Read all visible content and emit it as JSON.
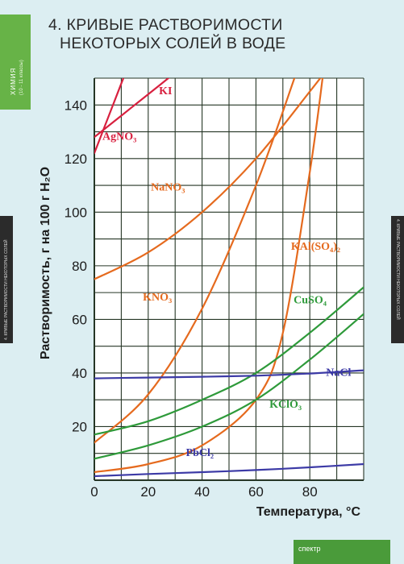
{
  "header": {
    "title_line1": "4. КРИВЫЕ РАСТВОРИМОСТИ",
    "title_line2": "НЕКОТОРЫХ СОЛЕЙ В ВОДЕ"
  },
  "side_tab": {
    "label": "ХИМИЯ",
    "sublabel": "(10 - 11 классы)"
  },
  "side_strip_text": "4. КРИВЫЕ РАСТВОРИМОСТИ НЕКОТОРЫХ СОЛЕЙ",
  "colors": {
    "grid": "#263626",
    "chart_bg": "#ffffff",
    "tab_green": "#67b347",
    "strip_dark": "#2b2b2b",
    "red": "#d8203f",
    "orange": "#e56a1e",
    "green": "#2e9a3a",
    "blue": "#3c3aa6"
  },
  "chart_data": {
    "type": "line",
    "xlabel": "Температура, °C",
    "ylabel": "Растворимость, г на 100 г H₂O",
    "xlim": [
      0,
      100
    ],
    "ylim": [
      0,
      150
    ],
    "xticks": [
      0,
      20,
      40,
      60,
      80
    ],
    "yticks": [
      20,
      40,
      60,
      80,
      100,
      120,
      140
    ],
    "grid": true,
    "series": [
      {
        "name": "KI",
        "color": "#d8203f",
        "x": [
          0,
          10,
          20,
          30
        ],
        "y": [
          128,
          136,
          144,
          152
        ]
      },
      {
        "name": "AgNO3",
        "color": "#d8203f",
        "x": [
          0,
          5,
          10,
          12
        ],
        "y": [
          122,
          135,
          148,
          153
        ]
      },
      {
        "name": "NaNO3",
        "color": "#e56a1e",
        "x": [
          0,
          20,
          40,
          60,
          80,
          90
        ],
        "y": [
          75,
          85,
          100,
          120,
          145,
          158
        ]
      },
      {
        "name": "KNO3",
        "color": "#e56a1e",
        "x": [
          0,
          20,
          40,
          60,
          75
        ],
        "y": [
          14,
          32,
          64,
          110,
          152
        ]
      },
      {
        "name": "KAl(SO4)2",
        "color": "#e56a1e",
        "x": [
          0,
          20,
          40,
          60,
          70,
          80,
          85
        ],
        "y": [
          3,
          6,
          13,
          30,
          55,
          115,
          152
        ]
      },
      {
        "name": "CuSO4",
        "color": "#2e9a3a",
        "x": [
          0,
          20,
          40,
          60,
          80,
          100
        ],
        "y": [
          17,
          22,
          30,
          40,
          55,
          72
        ]
      },
      {
        "name": "KClO3",
        "color": "#2e9a3a",
        "x": [
          0,
          20,
          40,
          60,
          80,
          100
        ],
        "y": [
          8,
          13,
          20,
          30,
          45,
          62
        ]
      },
      {
        "name": "NaCl",
        "color": "#3c3aa6",
        "x": [
          0,
          20,
          40,
          60,
          80,
          100
        ],
        "y": [
          38,
          38.3,
          38.6,
          39,
          39.8,
          41
        ]
      },
      {
        "name": "PbCl2",
        "color": "#3c3aa6",
        "x": [
          0,
          20,
          40,
          60,
          80,
          100
        ],
        "y": [
          1.5,
          2.3,
          3,
          3.8,
          4.8,
          6
        ]
      }
    ],
    "annotations": [
      {
        "series": "KI",
        "label": "KI",
        "x": 24,
        "y": 144,
        "color": "#d8203f"
      },
      {
        "series": "AgNO3",
        "label": "AgNO₃",
        "x": 3,
        "y": 127,
        "color": "#d8203f"
      },
      {
        "series": "NaNO3",
        "label": "NaNO₃",
        "x": 21,
        "y": 108,
        "color": "#e56a1e"
      },
      {
        "series": "KNO3",
        "label": "KNO₃",
        "x": 18,
        "y": 67,
        "color": "#e56a1e"
      },
      {
        "series": "KAl(SO4)2",
        "label": "KAl(SO₄)₂",
        "x": 73,
        "y": 86,
        "color": "#e56a1e"
      },
      {
        "series": "CuSO4",
        "label": "CuSO₄",
        "x": 74,
        "y": 66,
        "color": "#2e9a3a"
      },
      {
        "series": "KClO3",
        "label": "KClO₃",
        "x": 65,
        "y": 27,
        "color": "#2e9a3a"
      },
      {
        "series": "NaCl",
        "label": "NaCl",
        "x": 86,
        "y": 39,
        "color": "#3c3aa6"
      },
      {
        "series": "PbCl2",
        "label": "PbCl₂",
        "x": 34,
        "y": 9,
        "color": "#3c3aa6"
      }
    ]
  },
  "footer": {
    "logo_text": "спектр"
  }
}
